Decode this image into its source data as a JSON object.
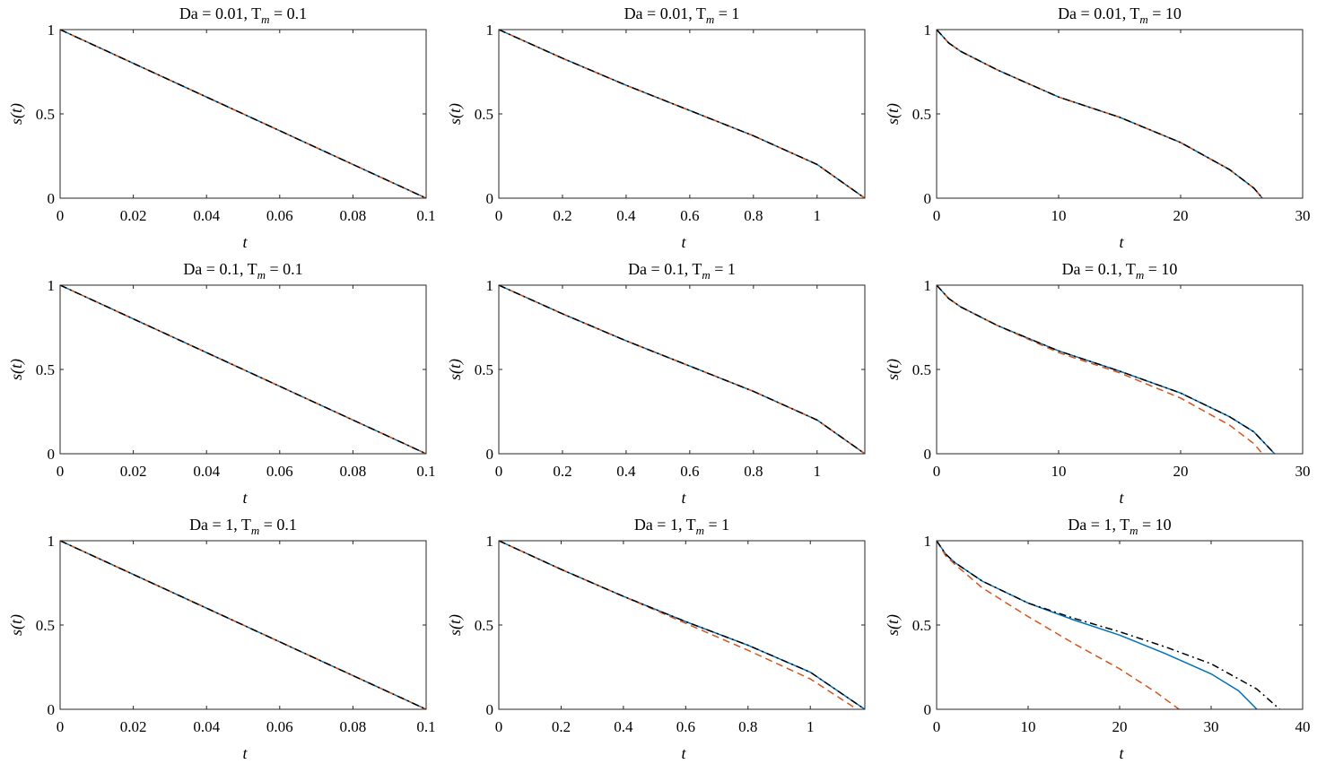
{
  "chart_data": [
    {
      "type": "line",
      "title": [
        "Da = 0.01, T",
        "m",
        " = 0.1"
      ],
      "xlabel": "t",
      "ylabel": "s(t)",
      "xlim": [
        0,
        0.1
      ],
      "ylim": [
        0,
        1
      ],
      "xticks": [
        0,
        0.02,
        0.04,
        0.06,
        0.08,
        0.1
      ],
      "yticks": [
        0,
        0.5,
        1
      ],
      "series": [
        {
          "color": "#0072bd",
          "linestyle": "solid",
          "x": [
            0,
            0.05,
            0.1
          ],
          "values": [
            1,
            0.5,
            0
          ]
        },
        {
          "color": "#d95319",
          "linestyle": "dashed",
          "x": [
            0,
            0.05,
            0.1
          ],
          "values": [
            1,
            0.5,
            0
          ]
        },
        {
          "color": "#000000",
          "linestyle": "dashdot",
          "x": [
            0,
            0.05,
            0.1
          ],
          "values": [
            1,
            0.5,
            0
          ]
        }
      ]
    },
    {
      "type": "line",
      "title": [
        "Da = 0.01, T",
        "m",
        " = 1"
      ],
      "xlabel": "t",
      "ylabel": "s(t)",
      "xlim": [
        0,
        1.15
      ],
      "ylim": [
        0,
        1
      ],
      "xticks": [
        0,
        0.2,
        0.4,
        0.6,
        0.8,
        1
      ],
      "yticks": [
        0,
        0.5,
        1
      ],
      "series": [
        {
          "color": "#0072bd",
          "linestyle": "solid",
          "x": [
            0,
            0.2,
            0.4,
            0.6,
            0.8,
            1,
            1.15
          ],
          "values": [
            1,
            0.83,
            0.67,
            0.52,
            0.37,
            0.2,
            0
          ]
        },
        {
          "color": "#d95319",
          "linestyle": "dashed",
          "x": [
            0,
            0.2,
            0.4,
            0.6,
            0.8,
            1,
            1.15
          ],
          "values": [
            1,
            0.83,
            0.67,
            0.52,
            0.37,
            0.2,
            0
          ]
        },
        {
          "color": "#000000",
          "linestyle": "dashdot",
          "x": [
            0,
            0.2,
            0.4,
            0.6,
            0.8,
            1,
            1.15
          ],
          "values": [
            1,
            0.83,
            0.67,
            0.52,
            0.37,
            0.2,
            0
          ]
        }
      ]
    },
    {
      "type": "line",
      "title": [
        "Da = 0.01, T",
        "m",
        " = 10"
      ],
      "xlabel": "t",
      "ylabel": "s(t)",
      "xlim": [
        0,
        30
      ],
      "ylim": [
        0,
        1
      ],
      "xticks": [
        0,
        10,
        20,
        30
      ],
      "yticks": [
        0,
        0.5,
        1
      ],
      "series": [
        {
          "color": "#0072bd",
          "linestyle": "solid",
          "x": [
            0,
            1,
            2,
            5,
            10,
            15,
            20,
            24,
            26,
            26.7
          ],
          "values": [
            1,
            0.92,
            0.87,
            0.76,
            0.6,
            0.48,
            0.33,
            0.17,
            0.06,
            0
          ]
        },
        {
          "color": "#d95319",
          "linestyle": "dashed",
          "x": [
            0,
            1,
            2,
            5,
            10,
            15,
            20,
            24,
            26,
            26.7
          ],
          "values": [
            1,
            0.92,
            0.87,
            0.76,
            0.6,
            0.48,
            0.33,
            0.17,
            0.06,
            0
          ]
        },
        {
          "color": "#000000",
          "linestyle": "dashdot",
          "x": [
            0,
            1,
            2,
            5,
            10,
            15,
            20,
            24,
            26,
            26.7
          ],
          "values": [
            1,
            0.92,
            0.87,
            0.76,
            0.6,
            0.48,
            0.33,
            0.17,
            0.06,
            0
          ]
        }
      ]
    },
    {
      "type": "line",
      "title": [
        "Da = 0.1, T",
        "m",
        " = 0.1"
      ],
      "xlabel": "t",
      "ylabel": "s(t)",
      "xlim": [
        0,
        0.1
      ],
      "ylim": [
        0,
        1
      ],
      "xticks": [
        0,
        0.02,
        0.04,
        0.06,
        0.08,
        0.1
      ],
      "yticks": [
        0,
        0.5,
        1
      ],
      "series": [
        {
          "color": "#0072bd",
          "linestyle": "solid",
          "x": [
            0,
            0.05,
            0.1
          ],
          "values": [
            1,
            0.5,
            0
          ]
        },
        {
          "color": "#d95319",
          "linestyle": "dashed",
          "x": [
            0,
            0.05,
            0.1
          ],
          "values": [
            1,
            0.5,
            0
          ]
        },
        {
          "color": "#000000",
          "linestyle": "dashdot",
          "x": [
            0,
            0.05,
            0.1
          ],
          "values": [
            1,
            0.5,
            0
          ]
        }
      ]
    },
    {
      "type": "line",
      "title": [
        "Da = 0.1, T",
        "m",
        " = 1"
      ],
      "xlabel": "t",
      "ylabel": "s(t)",
      "xlim": [
        0,
        1.15
      ],
      "ylim": [
        0,
        1
      ],
      "xticks": [
        0,
        0.2,
        0.4,
        0.6,
        0.8,
        1
      ],
      "yticks": [
        0,
        0.5,
        1
      ],
      "series": [
        {
          "color": "#0072bd",
          "linestyle": "solid",
          "x": [
            0,
            0.2,
            0.4,
            0.6,
            0.8,
            1,
            1.15
          ],
          "values": [
            1,
            0.83,
            0.67,
            0.52,
            0.37,
            0.2,
            0
          ]
        },
        {
          "color": "#d95319",
          "linestyle": "dashed",
          "x": [
            0,
            0.2,
            0.4,
            0.6,
            0.8,
            1,
            1.15
          ],
          "values": [
            1,
            0.83,
            0.67,
            0.52,
            0.37,
            0.2,
            0
          ]
        },
        {
          "color": "#000000",
          "linestyle": "dashdot",
          "x": [
            0,
            0.2,
            0.4,
            0.6,
            0.8,
            1,
            1.15
          ],
          "values": [
            1,
            0.83,
            0.67,
            0.52,
            0.37,
            0.2,
            0
          ]
        }
      ]
    },
    {
      "type": "line",
      "title": [
        "Da = 0.1, T",
        "m",
        " = 10"
      ],
      "xlabel": "t",
      "ylabel": "s(t)",
      "xlim": [
        0,
        30
      ],
      "ylim": [
        0,
        1
      ],
      "xticks": [
        0,
        10,
        20,
        30
      ],
      "yticks": [
        0,
        0.5,
        1
      ],
      "series": [
        {
          "color": "#0072bd",
          "linestyle": "solid",
          "x": [
            0,
            1,
            2,
            5,
            10,
            15,
            20,
            24,
            26,
            27.7
          ],
          "values": [
            1,
            0.92,
            0.87,
            0.76,
            0.61,
            0.49,
            0.36,
            0.22,
            0.13,
            0
          ]
        },
        {
          "color": "#d95319",
          "linestyle": "dashed",
          "x": [
            0,
            1,
            2,
            5,
            10,
            15,
            20,
            24,
            26,
            26.7
          ],
          "values": [
            1,
            0.92,
            0.87,
            0.76,
            0.6,
            0.48,
            0.33,
            0.17,
            0.06,
            0
          ]
        },
        {
          "color": "#000000",
          "linestyle": "dashdot",
          "x": [
            0,
            1,
            2,
            5,
            10,
            15,
            20,
            24,
            26,
            27.7
          ],
          "values": [
            1,
            0.92,
            0.87,
            0.76,
            0.61,
            0.49,
            0.36,
            0.22,
            0.13,
            0
          ]
        }
      ]
    },
    {
      "type": "line",
      "title": [
        "Da = 1, T",
        "m",
        " = 0.1"
      ],
      "xlabel": "t",
      "ylabel": "s(t)",
      "xlim": [
        0,
        0.1
      ],
      "ylim": [
        0,
        1
      ],
      "xticks": [
        0,
        0.02,
        0.04,
        0.06,
        0.08,
        0.1
      ],
      "yticks": [
        0,
        0.5,
        1
      ],
      "series": [
        {
          "color": "#0072bd",
          "linestyle": "solid",
          "x": [
            0,
            0.05,
            0.1
          ],
          "values": [
            1,
            0.5,
            0
          ]
        },
        {
          "color": "#d95319",
          "linestyle": "dashed",
          "x": [
            0,
            0.05,
            0.1
          ],
          "values": [
            1,
            0.5,
            0
          ]
        },
        {
          "color": "#000000",
          "linestyle": "dashdot",
          "x": [
            0,
            0.05,
            0.1
          ],
          "values": [
            1,
            0.5,
            0
          ]
        }
      ]
    },
    {
      "type": "line",
      "title": [
        "Da = 1, T",
        "m",
        " = 1"
      ],
      "xlabel": "t",
      "ylabel": "s(t)",
      "xlim": [
        0,
        1.175
      ],
      "ylim": [
        0,
        1
      ],
      "xticks": [
        0,
        0.2,
        0.4,
        0.6,
        0.8,
        1
      ],
      "yticks": [
        0,
        0.5,
        1
      ],
      "series": [
        {
          "color": "#0072bd",
          "linestyle": "solid",
          "x": [
            0,
            0.2,
            0.4,
            0.6,
            0.8,
            1,
            1.175
          ],
          "values": [
            1,
            0.83,
            0.67,
            0.52,
            0.38,
            0.22,
            0
          ]
        },
        {
          "color": "#d95319",
          "linestyle": "dashed",
          "x": [
            0,
            0.2,
            0.4,
            0.6,
            0.8,
            1,
            1.15
          ],
          "values": [
            1,
            0.83,
            0.67,
            0.51,
            0.35,
            0.18,
            0
          ]
        },
        {
          "color": "#000000",
          "linestyle": "dashdot",
          "x": [
            0,
            0.2,
            0.4,
            0.6,
            0.8,
            1,
            1.175
          ],
          "values": [
            1,
            0.83,
            0.67,
            0.52,
            0.38,
            0.22,
            0
          ]
        }
      ]
    },
    {
      "type": "line",
      "title": [
        "Da = 1, T",
        "m",
        " = 10"
      ],
      "xlabel": "t",
      "ylabel": "s(t)",
      "xlim": [
        0,
        40
      ],
      "ylim": [
        0,
        1
      ],
      "xticks": [
        0,
        10,
        20,
        30,
        40
      ],
      "yticks": [
        0,
        0.5,
        1
      ],
      "series": [
        {
          "color": "#0072bd",
          "linestyle": "solid",
          "x": [
            0,
            1,
            2,
            5,
            10,
            15,
            20,
            25,
            30,
            33,
            35
          ],
          "values": [
            1,
            0.92,
            0.87,
            0.76,
            0.63,
            0.53,
            0.44,
            0.33,
            0.21,
            0.11,
            0
          ]
        },
        {
          "color": "#d95319",
          "linestyle": "dashed",
          "x": [
            0,
            1,
            2,
            5,
            10,
            15,
            20,
            24,
            26.5
          ],
          "values": [
            1,
            0.91,
            0.86,
            0.72,
            0.55,
            0.39,
            0.24,
            0.1,
            0
          ]
        },
        {
          "color": "#000000",
          "linestyle": "dashdot",
          "x": [
            0,
            1,
            2,
            5,
            10,
            15,
            20,
            25,
            30,
            35,
            37.5
          ],
          "values": [
            1,
            0.92,
            0.87,
            0.76,
            0.63,
            0.54,
            0.46,
            0.37,
            0.27,
            0.12,
            0
          ]
        }
      ]
    }
  ]
}
